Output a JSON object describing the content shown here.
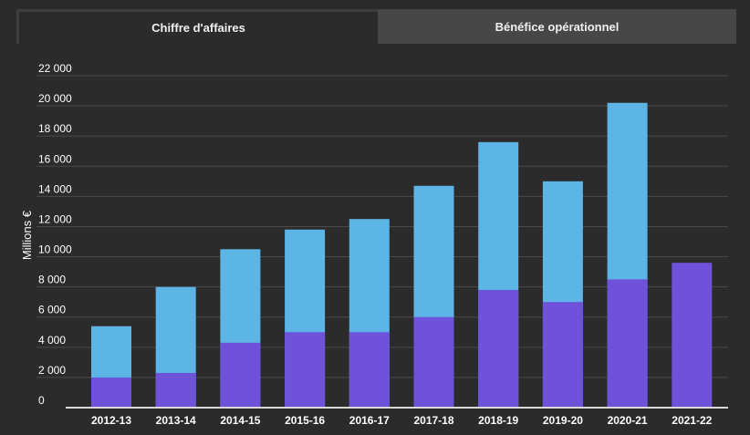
{
  "tabs": [
    {
      "label": "Chiffre d'affaires",
      "active": true
    },
    {
      "label": "Bénéfice opérationnel",
      "active": false
    }
  ],
  "colors": {
    "background": "#2b2b2b",
    "series_light": "#5db5e5",
    "series_dark": "#6e52d9",
    "grid": "#4a4a4a",
    "axis": "#d9d9d9"
  },
  "chart_data": {
    "type": "bar",
    "stacked": false,
    "ylabel": "Millions €",
    "ylim": [
      0,
      22000
    ],
    "yticks": [
      0,
      2000,
      4000,
      6000,
      8000,
      10000,
      12000,
      14000,
      16000,
      18000,
      20000,
      22000
    ],
    "ytick_labels": [
      "0",
      "2 000",
      "4 000",
      "6 000",
      "8 000",
      "10 000",
      "12 000",
      "14 000",
      "16 000",
      "18 000",
      "20 000",
      "22 000"
    ],
    "grid": true,
    "categories": [
      "2012-13",
      "2013-14",
      "2014-15",
      "2015-16",
      "2016-17",
      "2017-18",
      "2018-19",
      "2019-20",
      "2020-21",
      "2021-22"
    ],
    "series": [
      {
        "color": "#5db5e5",
        "values": [
          5400,
          8000,
          10500,
          11800,
          12500,
          14700,
          17600,
          15000,
          20200,
          null
        ]
      },
      {
        "color": "#6e52d9",
        "values": [
          2000,
          2300,
          4300,
          5000,
          5000,
          6000,
          7800,
          7000,
          8500,
          9600
        ]
      }
    ]
  }
}
